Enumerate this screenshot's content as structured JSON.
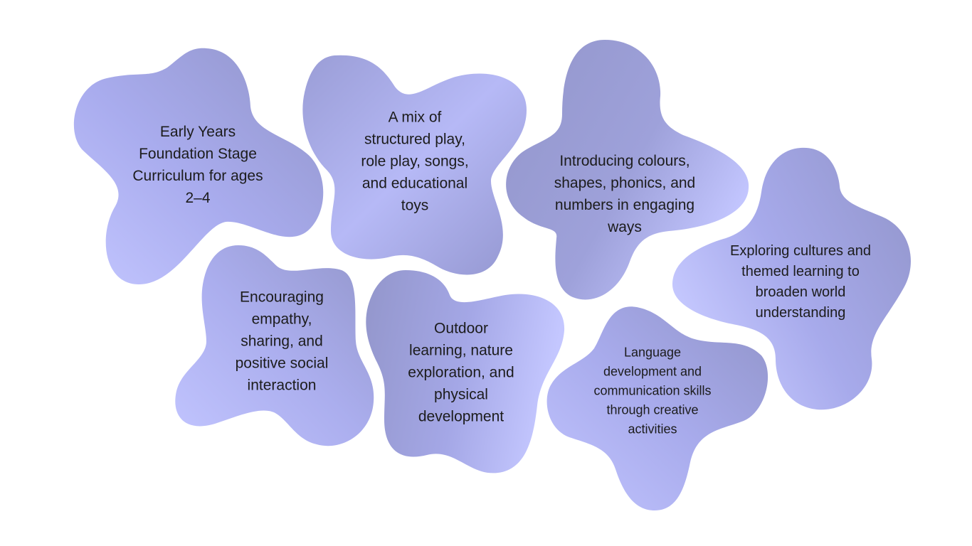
{
  "colors": {
    "blob_light": "#c3c6ff",
    "blob_mid": "#abaeee",
    "blob_dark": "#9396cb",
    "text": "#1c1c1c",
    "background": "#ffffff"
  },
  "blobs": [
    {
      "id": "early-years",
      "text": "Early Years\nFoundation Stage\nCurriculum for ages\n2–4"
    },
    {
      "id": "structured-play",
      "text": "A mix of\nstructured play,\nrole play, songs,\nand educational\ntoys"
    },
    {
      "id": "colours-shapes",
      "text": "Introducing colours,\nshapes, phonics, and\nnumbers in engaging\nways"
    },
    {
      "id": "cultures",
      "text": "Exploring cultures and\nthemed learning to\nbroaden world\nunderstanding"
    },
    {
      "id": "empathy",
      "text": "Encouraging\nempathy,\nsharing, and\npositive social\ninteraction"
    },
    {
      "id": "outdoor",
      "text": "Outdoor\nlearning, nature\nexploration, and\nphysical\ndevelopment"
    },
    {
      "id": "language",
      "text": "Language\ndevelopment and\ncommunication skills\nthrough creative\nactivities"
    }
  ]
}
